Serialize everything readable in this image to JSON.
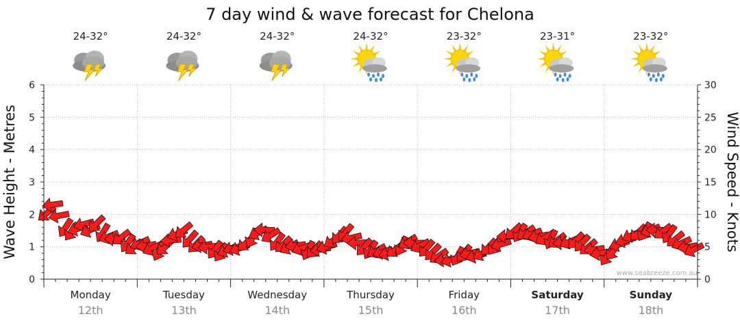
{
  "title": "7 day wind & wave forecast for Chelona",
  "credit": "www.seabreeze.com.au",
  "days": [
    {
      "temp": "24-32°",
      "weather_icon": "thunderstorm-icon",
      "day": "Monday",
      "date": "12th",
      "bold": false
    },
    {
      "temp": "24-32°",
      "weather_icon": "thunderstorm-icon",
      "day": "Tuesday",
      "date": "13th",
      "bold": false
    },
    {
      "temp": "24-32°",
      "weather_icon": "thunderstorm-icon",
      "day": "Wednesday",
      "date": "14th",
      "bold": false
    },
    {
      "temp": "24-32°",
      "weather_icon": "sun-showers-icon",
      "day": "Thursday",
      "date": "15th",
      "bold": false
    },
    {
      "temp": "23-32°",
      "weather_icon": "sun-showers-icon",
      "day": "Friday",
      "date": "16th",
      "bold": false
    },
    {
      "temp": "23-31°",
      "weather_icon": "sun-showers-icon",
      "day": "Saturday",
      "date": "17th",
      "bold": true
    },
    {
      "temp": "23-32°",
      "weather_icon": "sun-showers-icon",
      "day": "Sunday",
      "date": "18th",
      "bold": true
    }
  ],
  "chart_data": {
    "type": "line",
    "ylabel_left": "Wave Height - Metres",
    "ylabel_right": "Wind Speed - Knots",
    "ylim_left": [
      0,
      6
    ],
    "ylim_right": [
      0,
      30
    ],
    "yticks_left": [
      "0",
      "1",
      "2",
      "3",
      "4",
      "5",
      "6"
    ],
    "yticks_right": [
      "0",
      "5",
      "10",
      "15",
      "20",
      "25",
      "30"
    ],
    "x_unit": "day index (0 = Monday 12th start)",
    "grid": true,
    "series": [
      {
        "marker": "wind-direction-arrow",
        "color": "#ff0000",
        "values_knots": [
          10.2,
          11.5,
          9.8,
          8.0,
          7.4,
          7.8,
          8.5,
          7.6,
          8.6,
          7.2,
          6.6,
          6.2,
          6.5,
          5.6,
          5.0,
          5.6,
          5.2,
          4.8,
          4.4,
          5.0,
          6.0,
          7.0,
          7.6,
          6.2,
          5.4,
          5.2,
          5.0,
          4.6,
          4.2,
          4.5,
          4.8,
          4.8,
          5.6,
          6.4,
          7.2,
          7.6,
          6.8,
          5.8,
          5.4,
          5.0,
          5.2,
          4.8,
          4.5,
          4.6,
          4.6,
          5.0,
          6.0,
          6.8,
          7.2,
          6.4,
          5.6,
          5.0,
          4.6,
          4.4,
          4.2,
          4.0,
          4.6,
          5.2,
          5.8,
          5.6,
          5.2,
          4.8,
          4.2,
          3.6,
          3.0,
          3.0,
          3.6,
          4.0,
          4.0,
          3.6,
          4.0,
          5.0,
          5.2,
          5.4,
          6.6,
          7.4,
          7.2,
          7.2,
          7.0,
          6.6,
          6.4,
          6.2,
          6.0,
          5.6,
          5.8,
          6.0,
          5.6,
          5.0,
          4.6,
          4.0,
          3.6,
          4.4,
          5.4,
          6.0,
          6.8,
          7.2,
          7.4,
          7.6,
          7.6,
          7.4,
          7.0,
          6.2,
          5.6,
          5.0,
          4.6
        ]
      }
    ]
  }
}
